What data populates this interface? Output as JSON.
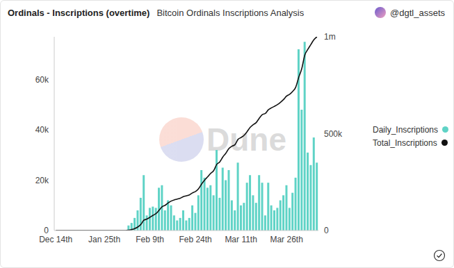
{
  "chart_data": {
    "type": "bar",
    "title": "Ordinals - Inscriptions (overtime)",
    "subtitle": "Bitcoin Ordinals Inscriptions Analysis",
    "author": "@dgtl_assets",
    "watermark": "Dune",
    "categories": [
      "Dec 14th",
      null,
      null,
      null,
      null,
      null,
      null,
      null,
      null,
      null,
      null,
      null,
      null,
      null,
      null,
      null,
      "Jan 25th",
      null,
      null,
      null,
      null,
      null,
      null,
      null,
      null,
      null,
      null,
      null,
      null,
      null,
      null,
      "Feb 9th",
      null,
      null,
      null,
      null,
      null,
      null,
      null,
      null,
      null,
      null,
      null,
      null,
      null,
      null,
      "Feb 24th",
      null,
      null,
      null,
      null,
      null,
      null,
      null,
      null,
      null,
      null,
      null,
      null,
      null,
      null,
      "Mar 11th",
      null,
      null,
      null,
      null,
      null,
      null,
      null,
      null,
      null,
      null,
      null,
      null,
      null,
      null,
      "Mar 26th",
      null,
      null,
      null,
      null,
      null,
      null,
      null,
      null,
      null,
      null
    ],
    "series": [
      {
        "name": "Daily_Inscriptions",
        "type": "bar",
        "color": "#5fd3c6",
        "values": [
          0,
          0,
          0,
          0,
          0,
          0,
          0,
          0,
          0,
          0,
          0,
          0,
          0,
          0,
          0,
          0,
          0,
          0,
          0,
          0,
          0,
          0,
          0,
          0,
          2000,
          3000,
          5000,
          8000,
          13000,
          22000,
          6000,
          9000,
          9500,
          9000,
          17000,
          18000,
          8000,
          12000,
          10000,
          6000,
          4000,
          5000,
          8000,
          4000,
          5000,
          10000,
          7000,
          14000,
          24000,
          21000,
          17000,
          18000,
          14000,
          32000,
          13000,
          25000,
          20000,
          24000,
          12000,
          8000,
          27000,
          10000,
          11000,
          19000,
          22000,
          14000,
          11000,
          22000,
          19000,
          6000,
          19000,
          10000,
          8000,
          9000,
          12000,
          14000,
          18000,
          9000,
          15000,
          21000,
          72000,
          48000,
          75000,
          31000,
          26000,
          37000,
          27000
        ]
      },
      {
        "name": "Total_Inscriptions",
        "type": "line",
        "axis": "y2",
        "color": "#111111",
        "values": [
          0,
          0,
          0,
          0,
          0,
          0,
          0,
          0,
          0,
          0,
          0,
          0,
          0,
          0,
          0,
          0,
          0,
          0,
          0,
          0,
          0,
          0,
          0,
          0,
          2000,
          5000,
          10000,
          18000,
          31000,
          53000,
          59000,
          68000,
          78000,
          87000,
          104000,
          122000,
          130000,
          142000,
          152000,
          158000,
          162000,
          167000,
          175000,
          179000,
          184000,
          194000,
          201000,
          215000,
          239000,
          260000,
          277000,
          295000,
          309000,
          341000,
          354000,
          379000,
          399000,
          423000,
          435000,
          443000,
          470000,
          480000,
          491000,
          510000,
          532000,
          546000,
          557000,
          579000,
          598000,
          604000,
          623000,
          633000,
          641000,
          650000,
          662000,
          676000,
          694000,
          703000,
          718000,
          739000,
          790000,
          835000,
          905000,
          935000,
          960000,
          985000,
          1000000
        ]
      }
    ],
    "ylim": [
      0,
      77000
    ],
    "yticks": [
      0,
      {
        "value": 20000,
        "label": "20k"
      },
      {
        "value": 40000,
        "label": "40k"
      },
      {
        "value": 60000,
        "label": "60k"
      }
    ],
    "y2lim": [
      0,
      1000000
    ],
    "y2ticks": [
      0,
      {
        "value": 500000,
        "label": "500k"
      },
      {
        "value": 1000000,
        "label": "1m"
      }
    ],
    "grid": false,
    "legend": "right"
  }
}
